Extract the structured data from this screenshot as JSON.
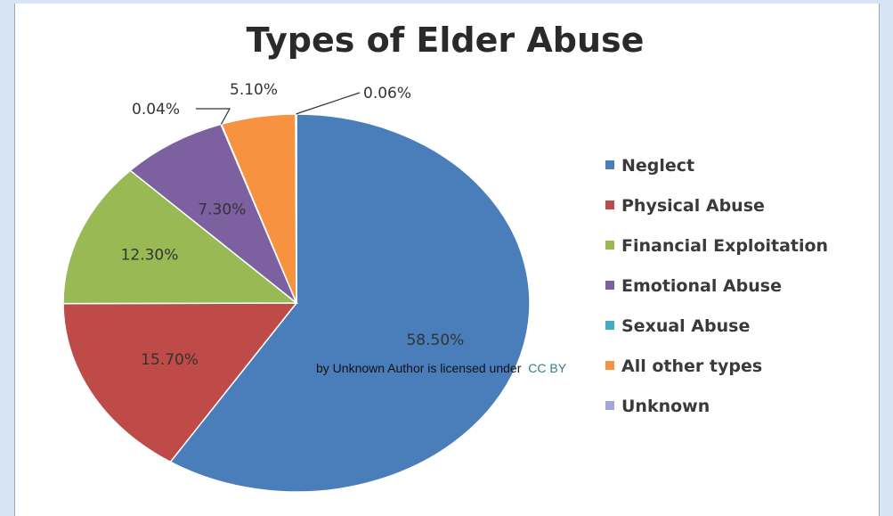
{
  "chart_data": {
    "type": "pie",
    "title": "Types of Elder Abuse",
    "slices": [
      {
        "name": "Neglect",
        "value": 58.5,
        "label": "58.50%",
        "color": "#4a7ebb"
      },
      {
        "name": "Physical Abuse",
        "value": 15.7,
        "label": "15.70%",
        "color": "#be4b48"
      },
      {
        "name": "Financial Exploitation",
        "value": 12.3,
        "label": "12.30%",
        "color": "#98b954"
      },
      {
        "name": "Emotional Abuse",
        "value": 7.3,
        "label": "7.30%",
        "color": "#7d60a0"
      },
      {
        "name": "Sexual Abuse",
        "value": 0.04,
        "label": "0.04%",
        "color": "#46aac5"
      },
      {
        "name": "All other types",
        "value": 5.1,
        "label": "5.10%",
        "color": "#f69240"
      },
      {
        "name": "Unknown",
        "value": 0.06,
        "label": "0.06%",
        "color": "#a5a5d8"
      }
    ],
    "legend_position": "right"
  },
  "attribution": {
    "text": "by Unknown Author is licensed under",
    "license": "CC BY"
  }
}
